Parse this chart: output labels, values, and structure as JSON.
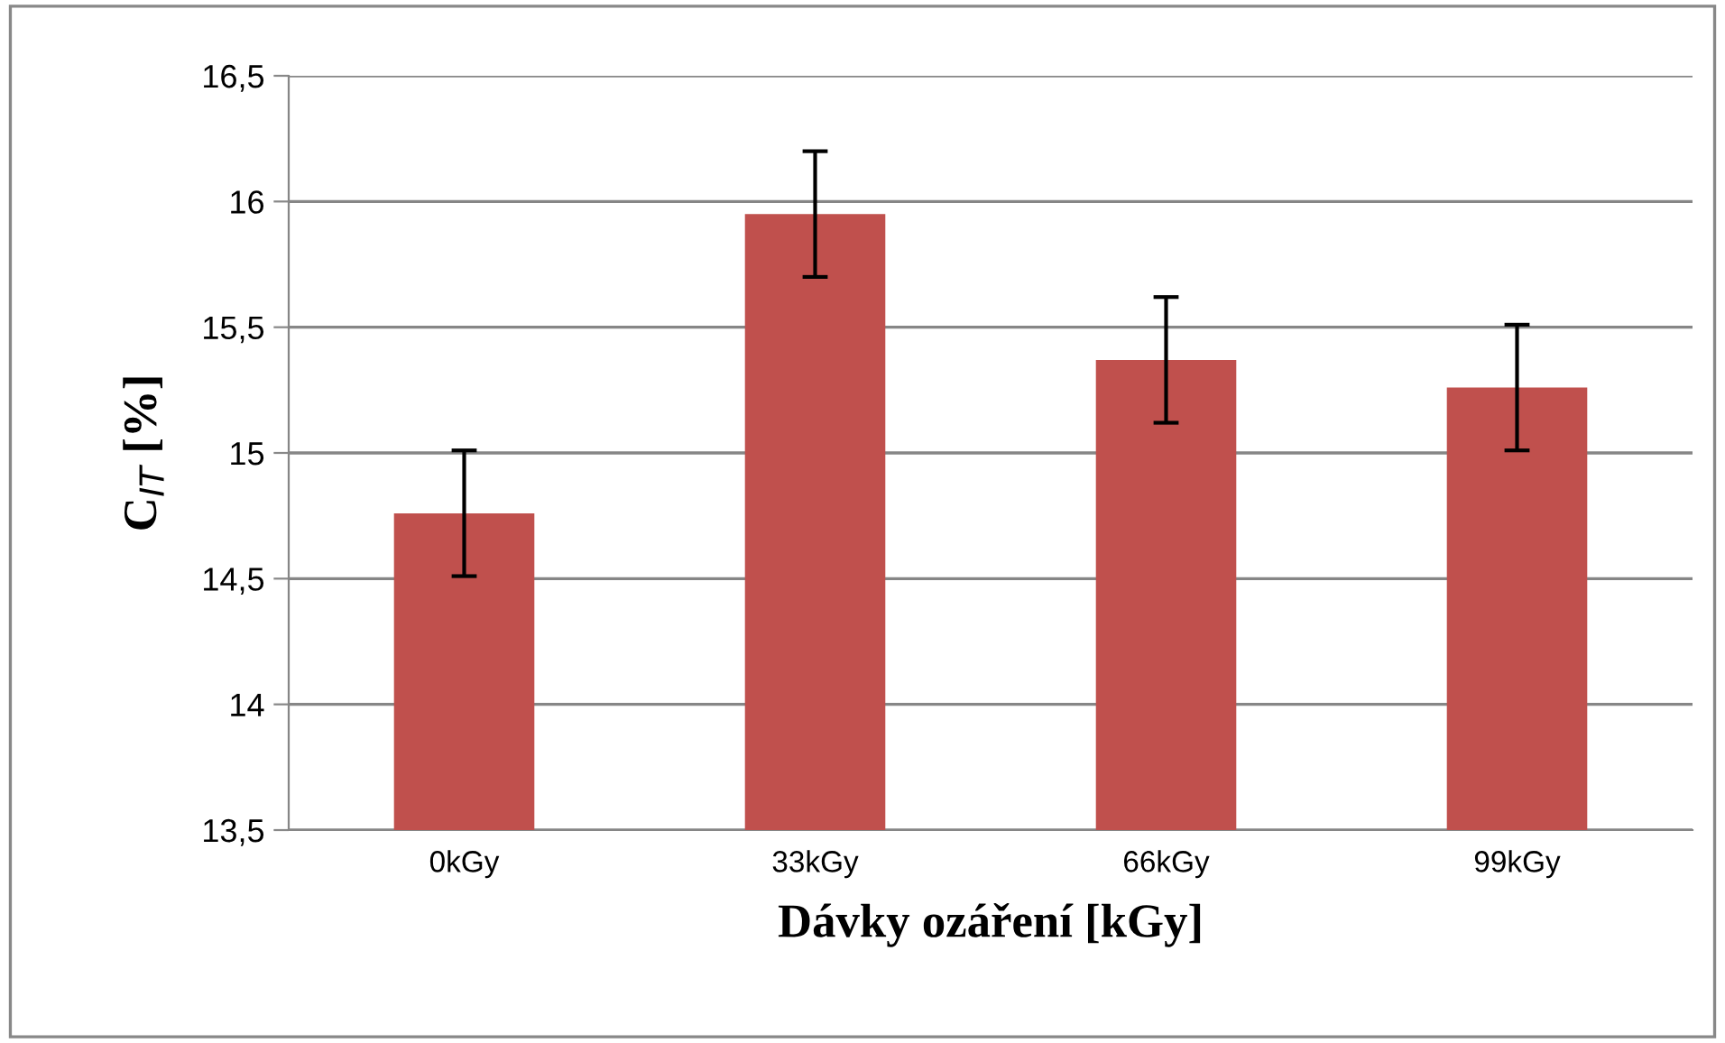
{
  "chart_data": {
    "type": "bar",
    "xlabel": "Dávky ozáření [kGy]",
    "ylabel": "C$_{IT}$ [%]",
    "categories": [
      "0kGy",
      "33kGy",
      "66kGy",
      "99kGy"
    ],
    "values": [
      14.76,
      15.95,
      15.37,
      15.26
    ],
    "errors": [
      0.25,
      0.25,
      0.25,
      0.25
    ],
    "color": "#c0504d",
    "ylim": [
      13.5,
      16.5
    ],
    "yticks": [
      {
        "value": 13.5,
        "label": "13,5"
      },
      14,
      {
        "value": 14.5,
        "label": "14,5"
      },
      15,
      {
        "value": 15.5,
        "label": "15,5"
      },
      16,
      {
        "value": 16.5,
        "label": "16,5"
      }
    ],
    "grid": "y",
    "legend": false
  }
}
